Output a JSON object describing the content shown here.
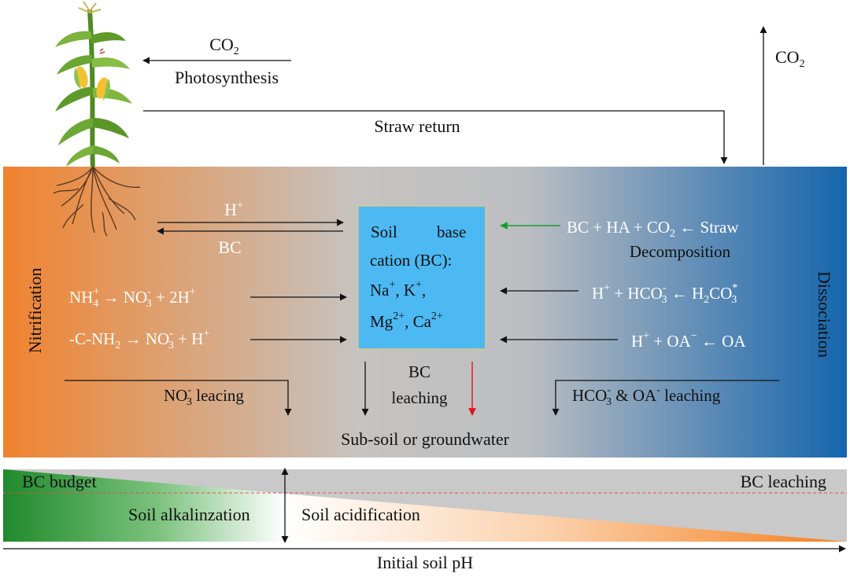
{
  "top": {
    "co2_left": "CO",
    "co2_left_sub": "2",
    "photosynthesis": "Photosynthesis",
    "co2_right": "CO",
    "co2_right_sub": "2",
    "straw_return": "Straw return"
  },
  "soil": {
    "h_plus": "H",
    "h_plus_sup": "+",
    "bc": "BC",
    "nitrification": "Nitrification",
    "dissociation": "Dissociation",
    "eq_nh4": {
      "a": "NH",
      "a_sub": "4",
      "a_sup": "+",
      "b": " → NO",
      "b_sub": "3",
      "b_sup": "-",
      "c": " + 2H",
      "c_sup": "+"
    },
    "eq_cnh2": {
      "a": "-C-NH",
      "a_sub": "2",
      "b": " → NO",
      "b_sub": "3",
      "b_sup": "-",
      "c": " + H",
      "c_sup": "+"
    },
    "box": {
      "line1a": "Soil",
      "line1b": "base",
      "line2": "cation (BC):",
      "na": "Na",
      "na_sup": "+",
      "k": ",  K",
      "k_sup": "+",
      "k_end": ",",
      "mg": "Mg",
      "mg_sup": "2+",
      "ca": ",  Ca",
      "ca_sup": "2+",
      "color": "#4db9f2"
    },
    "eq_straw": {
      "a": "BC + HA + CO",
      "a_sub": "2",
      "b": " ← Straw"
    },
    "decomposition": "Decomposition",
    "eq_h2co3": {
      "a": "H",
      "a_sup": "+",
      "b": " + HCO",
      "b_sub": "3",
      "b_sup": "-",
      "c": " ← H",
      "c_sub": "2",
      "d": "CO",
      "d_sub": "3",
      "d_sup": "*"
    },
    "eq_oa": {
      "a": "H",
      "a_sup": "+",
      "b": " +  OA",
      "b_sup": "−",
      "c": " ← OA"
    },
    "no3_leacing": {
      "a": "NO",
      "a_sub": "3",
      "a_sup": "-",
      "b": " leacing"
    },
    "bc_leaching_1": "BC",
    "bc_leaching_2": "leaching",
    "hco3_leaching": {
      "a": "HCO",
      "a_sub": "3",
      "a_sup": "-",
      "b": " & OA",
      "b_sup": "-",
      "c": " leaching"
    },
    "subsoil": "Sub-soil or groundwater",
    "gradient_colors": [
      "#f0832f",
      "#c6c6c6",
      "#1565ad"
    ]
  },
  "bottom": {
    "bc_budget": "BC budget",
    "bc_leaching": "BC leaching",
    "soil_alkalinization": "Soil alkalinzation",
    "soil_acidification": "Soil acidification",
    "initial_soil_ph": "Initial soil pH",
    "green": "#1f8a2b",
    "orange": "#f5801f",
    "gray": "#c9c9c9",
    "dash": "#d9534f"
  },
  "icons": {
    "plant": "corn-plant-icon"
  }
}
